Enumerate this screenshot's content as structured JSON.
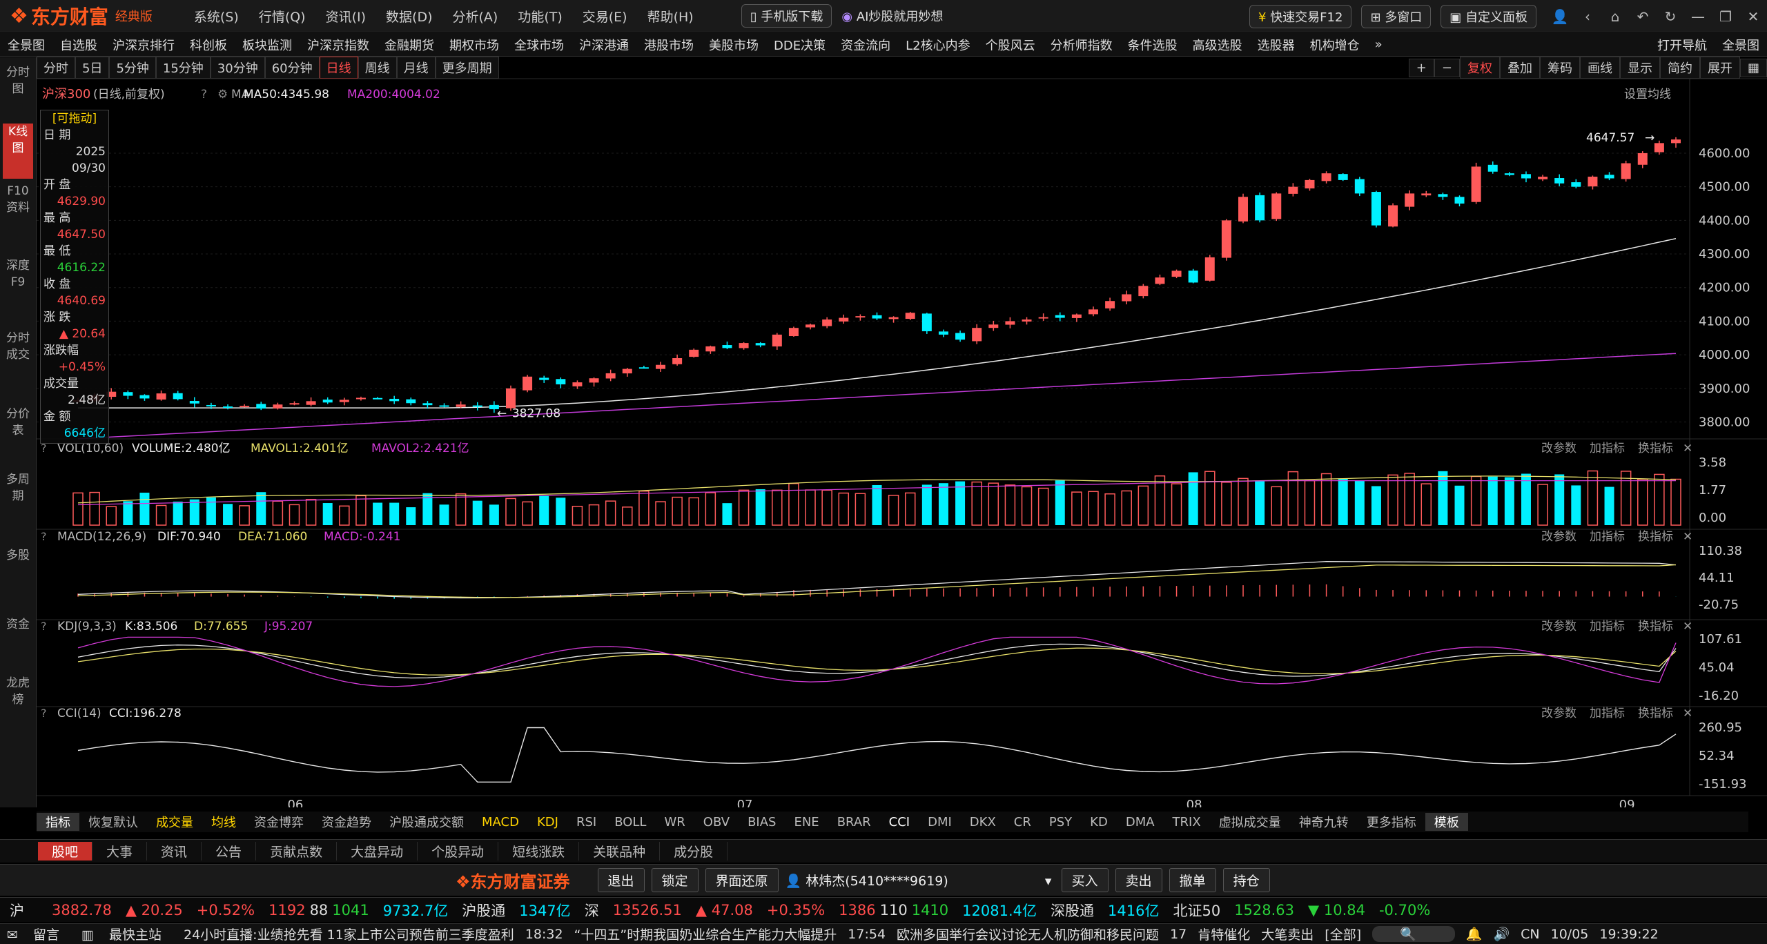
{
  "titlebar": {
    "brand": "东方财富",
    "edition": "经典版",
    "menu": [
      "系统(S)",
      "行情(Q)",
      "资讯(I)",
      "数据(D)",
      "分析(A)",
      "功能(T)",
      "交易(E)",
      "帮助(H)"
    ],
    "mobile_download": "手机版下载",
    "ai_banner": "AI炒股就用妙想",
    "quick_trade": "快速交易F12",
    "multi_window": "多窗口",
    "custom_panel": "自定义面板"
  },
  "navbar": {
    "items": [
      "全景图",
      "自选股",
      "沪深京排行",
      "科创板",
      "板块监测",
      "沪深京指数",
      "金融期货",
      "期权市场",
      "全球市场",
      "沪深港通",
      "港股市场",
      "美股市场",
      "DDE决策",
      "资金流向",
      "L2核心内参",
      "个股风云",
      "分析师指数",
      "条件选股",
      "高级选股",
      "选股器",
      "机构增仓",
      "»"
    ],
    "right": [
      "打开导航",
      "全景图"
    ]
  },
  "lefttabs": [
    "分时图",
    "K线图",
    "F10资料",
    "深度F9",
    "分时成交",
    "分价表",
    "多周期",
    "多股",
    "资金",
    "龙虎榜"
  ],
  "periods": {
    "items": [
      "分时",
      "5日",
      "5分钟",
      "15分钟",
      "30分钟",
      "60分钟",
      "日线",
      "周线",
      "月线",
      "更多周期"
    ],
    "active": "日线"
  },
  "righttools": [
    "+",
    "−",
    "复权",
    "叠加",
    "筹码",
    "画线",
    "显示",
    "简约",
    "展开"
  ],
  "main": {
    "symbol": "沪深300",
    "symbol_note": "(日线,前复权)",
    "ma_label": "MA",
    "ma50_label": "MA50:4345.98",
    "ma200_label": "MA200:4004.02",
    "settings": "设置均线",
    "price_ticks": [
      "4600.00",
      "4500.00",
      "4400.00",
      "4300.00",
      "4200.00",
      "4100.00",
      "4000.00",
      "3900.00",
      "3800.00"
    ],
    "high_mark": "4647.57",
    "low_mark": "3827.08",
    "x_labels": [
      "06",
      "07",
      "08",
      "09"
    ]
  },
  "info": {
    "draggable": "[可拖动]",
    "date_label": "日 期",
    "year": "2025",
    "date": "09/30",
    "open_label": "开 盘",
    "open": "4629.90",
    "high_label": "最 高",
    "high": "4647.50",
    "low_label": "最 低",
    "low": "4616.22",
    "close_label": "收 盘",
    "close": "4640.69",
    "chg_label": "涨 跌",
    "chg": "▲ 20.64",
    "pct_label": "涨跌幅",
    "pct": "+0.45%",
    "vol_label": "成交量",
    "vol": "2.48亿",
    "amt_label": "金 额",
    "amt": "6646亿"
  },
  "vol": {
    "name": "VOL(10,60)",
    "v": "VOLUME:2.480亿",
    "m1": "MAVOL1:2.401亿",
    "m2": "MAVOL2:2.421亿",
    "ticks": [
      "3.58",
      "1.77",
      "0.00"
    ]
  },
  "macd": {
    "name": "MACD(12,26,9)",
    "dif": "DIF:70.940",
    "dea": "DEA:71.060",
    "macd": "MACD:-0.241",
    "ticks": [
      "110.38",
      "44.11",
      "-20.75"
    ]
  },
  "kdj": {
    "name": "KDJ(9,3,3)",
    "k": "K:83.506",
    "d": "D:77.655",
    "j": "J:95.207",
    "ticks": [
      "107.61",
      "45.04",
      "-16.20"
    ]
  },
  "cci": {
    "name": "CCI(14)",
    "v": "CCI:196.278",
    "ticks": [
      "260.95",
      "52.34",
      "-151.93"
    ]
  },
  "pane_actions": [
    "改参数",
    "加指标",
    "换指标"
  ],
  "indicator_tabs": [
    "指标",
    "恢复默认",
    "成交量",
    "均线",
    "资金博弈",
    "资金趋势",
    "沪股通成交额",
    "MACD",
    "KDJ",
    "RSI",
    "BOLL",
    "WR",
    "OBV",
    "BIAS",
    "ENE",
    "BRAR",
    "CCI",
    "DMI",
    "DKX",
    "CR",
    "PSY",
    "KD",
    "DMA",
    "TRIX",
    "虚拟成交量",
    "神奇九转",
    "更多指标",
    "模板"
  ],
  "news_tabs": [
    "股吧",
    "大事",
    "资讯",
    "公告",
    "贡献点数",
    "大盘异动",
    "个股异动",
    "短线涨跌",
    "关联品种",
    "成分股"
  ],
  "trade": {
    "brand": "东方财富证券",
    "buttons": [
      "退出",
      "锁定",
      "界面还原"
    ],
    "account": "林炜杰(5410****9619)",
    "actions": [
      "买入",
      "卖出",
      "撤单",
      "持仓"
    ]
  },
  "quotes": {
    "sh_label": "沪",
    "sh_price": "3882.78",
    "sh_chg": "▲ 20.25",
    "sh_pct": "+0.52%",
    "sh_up": "1192",
    "sh_flat": "88",
    "sh_dn": "1041",
    "sh_amt": "9732.7亿",
    "hgt_label": "沪股通",
    "hgt_val": "1347亿",
    "sz_label": "深",
    "sz_price": "13526.51",
    "sz_chg": "▲ 47.08",
    "sz_pct": "+0.35%",
    "sz_up": "1386",
    "sz_flat": "110",
    "sz_dn": "1410",
    "sz_amt": "12081.4亿",
    "sgt_label": "深股通",
    "sgt_val": "1416亿",
    "bz_label": "北证50",
    "bz_price": "1528.63",
    "bz_chg": "▼ 10.84",
    "bz_pct": "-0.70%"
  },
  "ticker": {
    "msg": "留言",
    "fast": "最快主站",
    "live": "24小时直播:",
    "news1": "业绩抢先看 11家上市公司预告前三季度盈利",
    "time2": "18:32",
    "news2": "“十四五”时期我国奶业综合生产能力大幅提升",
    "time3": "17:54",
    "news3": "欧洲多国举行会议讨论无人机防御和移民问题",
    "count": "17",
    "alert1": "肯特催化",
    "alert2": "大笔卖出",
    "all": "[全部]",
    "lang": "CN",
    "date": "10/05",
    "time": "19:39:22"
  },
  "colors": {
    "up": "#ff5a5a",
    "down": "#00f0ff",
    "ma50": "#e6e6e6",
    "ma200": "#c23bd9",
    "yellow": "#e8e06a",
    "magenta": "#d43bd9"
  },
  "chart_data": [
    {
      "type": "candlestick",
      "title": "沪深300",
      "x_labels": [
        "06",
        "07",
        "08",
        "09"
      ],
      "ylim": [
        3760,
        4680
      ],
      "last": {
        "date": "2025-09-30",
        "open": 4629.9,
        "high": 4647.5,
        "low": 4616.22,
        "close": 4640.69
      },
      "high_label": 4647.57,
      "low_label": 3827.08,
      "close_series": [
        3865,
        3880,
        3890,
        3878,
        3870,
        3885,
        3868,
        3855,
        3850,
        3845,
        3848,
        3840,
        3852,
        3856,
        3862,
        3858,
        3866,
        3872,
        3870,
        3862,
        3856,
        3850,
        3848,
        3852,
        3845,
        3838,
        3900,
        3935,
        3925,
        3912,
        3918,
        3930,
        3945,
        3958,
        3962,
        3970,
        3990,
        4015,
        4025,
        4020,
        4035,
        4028,
        4060,
        4080,
        4090,
        4105,
        4110,
        4115,
        4108,
        4112,
        4125,
        4070,
        4060,
        4045,
        4080,
        4090,
        4100,
        4105,
        4112,
        4110,
        4120,
        4135,
        4160,
        4180,
        4205,
        4230,
        4250,
        4215,
        4290,
        4400,
        4470,
        4400,
        4480,
        4500,
        4520,
        4540,
        4520,
        4480,
        4385,
        4445,
        4480,
        4480,
        4470,
        4450,
        4560,
        4545,
        4535,
        4525,
        4530,
        4510,
        4500,
        4530,
        4525,
        4570,
        4600,
        4630,
        4640
      ],
      "ma50_end": 4345.98,
      "ma200_end": 4004.02
    },
    {
      "type": "bar",
      "title": "VOL(10,60)",
      "ylim": [
        0,
        3.58
      ],
      "last": 2.48,
      "mavol1": 2.401,
      "mavol2": 2.421
    },
    {
      "type": "line",
      "title": "MACD(12,26,9)",
      "ylim": [
        -20.75,
        110.38
      ],
      "dif": 70.94,
      "dea": 71.06,
      "macd": -0.241
    },
    {
      "type": "line",
      "title": "KDJ(9,3,3)",
      "ylim": [
        -16.2,
        107.61
      ],
      "k": 83.506,
      "d": 77.655,
      "j": 95.207
    },
    {
      "type": "line",
      "title": "CCI(14)",
      "ylim": [
        -151.93,
        260.95
      ],
      "cci": 196.278
    }
  ]
}
